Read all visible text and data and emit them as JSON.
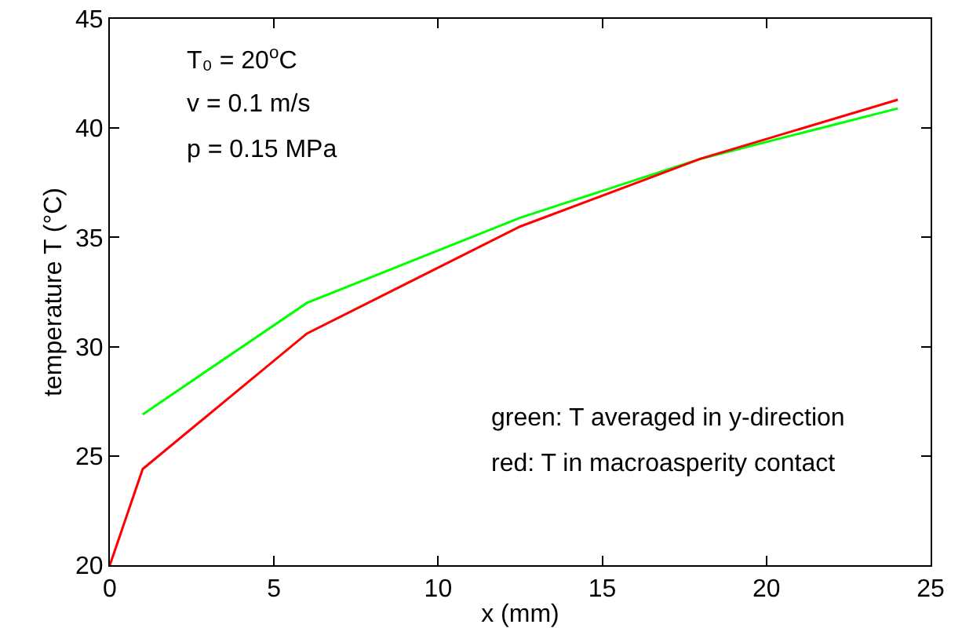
{
  "chart_data": {
    "type": "line",
    "xlabel": "x (mm)",
    "ylabel": "temperature T (°C)",
    "xlim": [
      0,
      25
    ],
    "xticks": [
      0,
      5,
      10,
      15,
      20,
      25
    ],
    "ylim": [
      20,
      45
    ],
    "yticks": [
      20,
      25,
      30,
      35,
      40,
      45
    ],
    "grid": false,
    "marker": "none",
    "line_style": "solid",
    "series": [
      {
        "color": "#ff0000",
        "x": [
          0,
          1,
          6,
          12.5,
          18,
          24
        ],
        "values": [
          20,
          24.4,
          30.6,
          35.5,
          38.6,
          41.3
        ]
      },
      {
        "color": "#00ff00",
        "x": [
          1,
          6,
          12.5,
          18,
          24
        ],
        "values": [
          26.9,
          32,
          35.9,
          38.6,
          40.9
        ]
      }
    ],
    "annotations": [
      "T₀ = 20$^{o}$C",
      "v = 0.1 m/s",
      "p = 0.15 MPa",
      "green: T averaged in y-direction",
      "red: T in macroasperity contact"
    ]
  }
}
